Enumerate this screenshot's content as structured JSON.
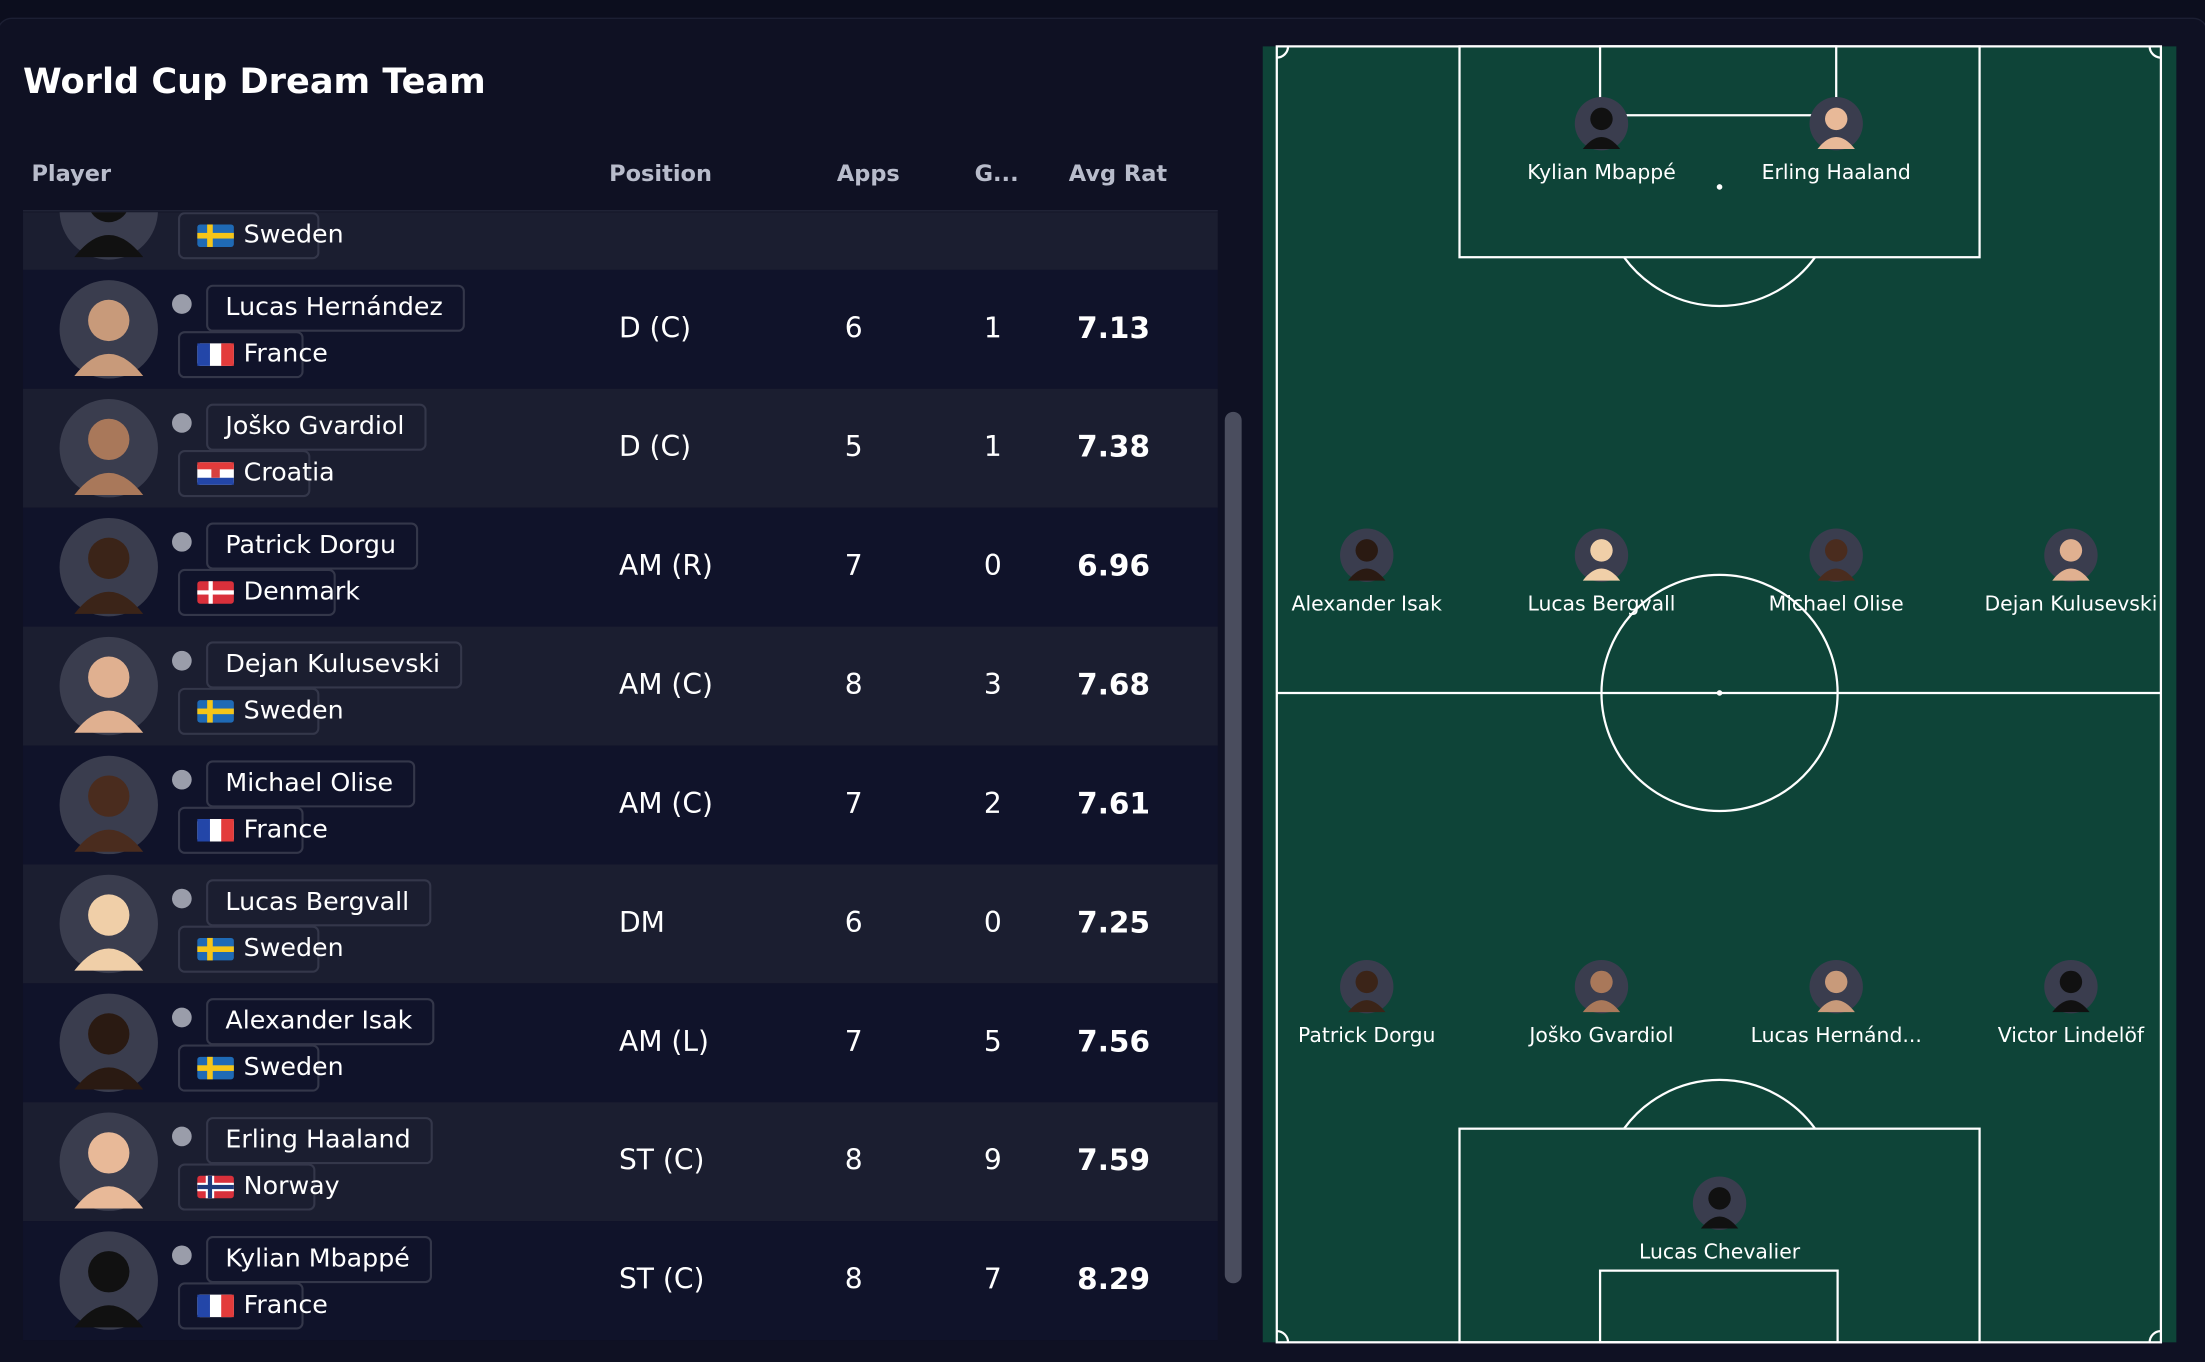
{
  "header": {
    "title": "World Cup Dream Team"
  },
  "table": {
    "columns": [
      "Player",
      "Position",
      "Apps",
      "G...",
      "Avg Rat"
    ],
    "rows": [
      {
        "country": "Sweden"
      },
      {
        "player": "Lucas Hernández",
        "country": "France",
        "position": "D (C)",
        "apps": 6,
        "goals": 1,
        "avg_rating": 7.13
      },
      {
        "player": "Joško Gvardiol",
        "country": "Croatia",
        "position": "D (C)",
        "apps": 5,
        "goals": 1,
        "avg_rating": 7.38
      },
      {
        "player": "Patrick Dorgu",
        "country": "Denmark",
        "position": "AM (R)",
        "apps": 7,
        "goals": 0,
        "avg_rating": 6.96
      },
      {
        "player": "Dejan Kulusevski",
        "country": "Sweden",
        "position": "AM (C)",
        "apps": 8,
        "goals": 3,
        "avg_rating": 7.68
      },
      {
        "player": "Michael Olise",
        "country": "France",
        "position": "AM (C)",
        "apps": 7,
        "goals": 2,
        "avg_rating": 7.61
      },
      {
        "player": "Lucas Bergvall",
        "country": "Sweden",
        "position": "DM",
        "apps": 6,
        "goals": 0,
        "avg_rating": 7.25
      },
      {
        "player": "Alexander Isak",
        "country": "Sweden",
        "position": "AM (L)",
        "apps": 7,
        "goals": 5,
        "avg_rating": 7.56
      },
      {
        "player": "Erling Haaland",
        "country": "Norway",
        "position": "ST (C)",
        "apps": 8,
        "goals": 9,
        "avg_rating": 7.59
      },
      {
        "player": "Kylian Mbappé",
        "country": "France",
        "position": "ST (C)",
        "apps": 8,
        "goals": 7,
        "avg_rating": 8.29
      }
    ]
  },
  "pitch": {
    "players": [
      "Kylian Mbappé",
      "Erling Haaland",
      "Alexander Isak",
      "Lucas Bergvall",
      "Michael Olise",
      "Dejan Kulusevski",
      "Patrick Dorgu",
      "Joško Gvardiol",
      "Lucas Hernánd...",
      "Victor Lindelöf",
      "Lucas Chevalier"
    ]
  }
}
